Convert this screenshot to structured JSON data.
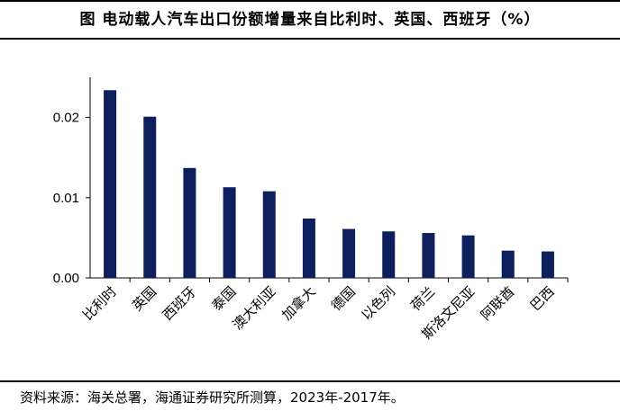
{
  "chart_data": {
    "type": "bar",
    "title": "图  电动载人汽车出口份额增量来自比利时、英国、西班牙（%）",
    "source": "资料来源：海关总署，海通证券研究所测算，2023年-2017年。",
    "categories": [
      "比利时",
      "英国",
      "西班牙",
      "泰国",
      "澳大利亚",
      "加拿大",
      "德国",
      "以色列",
      "荷兰",
      "斯洛文尼亚",
      "阿联酋",
      "巴西"
    ],
    "values": [
      0.0234,
      0.0201,
      0.0137,
      0.0113,
      0.0108,
      0.0074,
      0.0061,
      0.0058,
      0.0056,
      0.0053,
      0.0034,
      0.0033
    ],
    "yticks": [
      "0.00",
      "0.01",
      "0.02"
    ],
    "ylim": [
      0,
      0.025
    ],
    "xlabel": "",
    "ylabel": "",
    "grid": false,
    "bar_color": "#0d1f5c"
  }
}
